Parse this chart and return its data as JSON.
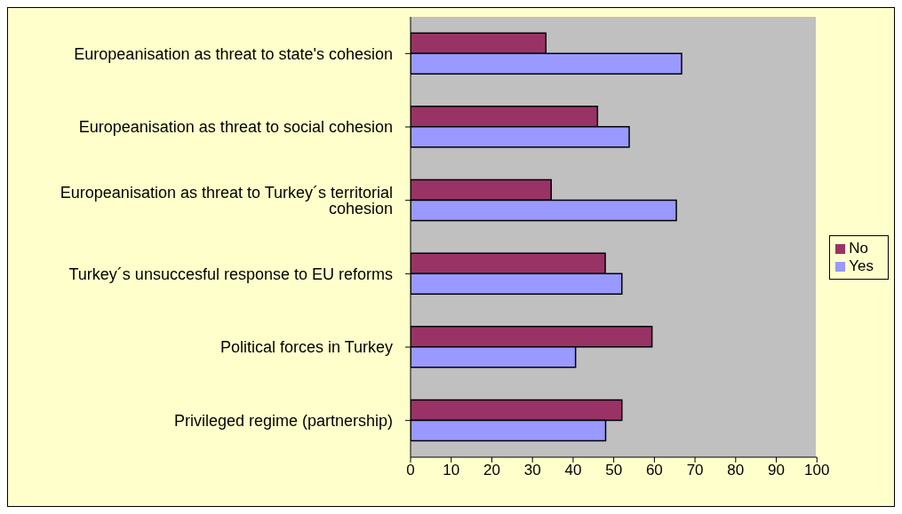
{
  "chart_data": {
    "type": "bar",
    "orientation": "horizontal",
    "categories": [
      "Europeanisation as threat to state's cohesion",
      "Europeanisation as threat to social cohesion",
      "Europeanisation as threat to Turkey´s territorial cohesion",
      "Turkey´s unsuccesful response to EU reforms",
      "Political forces in Turkey",
      "Privileged regime (partnership)"
    ],
    "series": [
      {
        "name": "No",
        "color": "#993366",
        "values": [
          33.3,
          46,
          34.6,
          47.9,
          59.4,
          52
        ]
      },
      {
        "name": "Yes",
        "color": "#9999ff",
        "values": [
          66.7,
          53.8,
          65.4,
          52,
          40.6,
          48
        ]
      }
    ],
    "xlim": [
      0,
      100
    ],
    "xticks": [
      0,
      10,
      20,
      30,
      40,
      50,
      60,
      70,
      80,
      90,
      100
    ],
    "grid": false,
    "legend": "right"
  }
}
